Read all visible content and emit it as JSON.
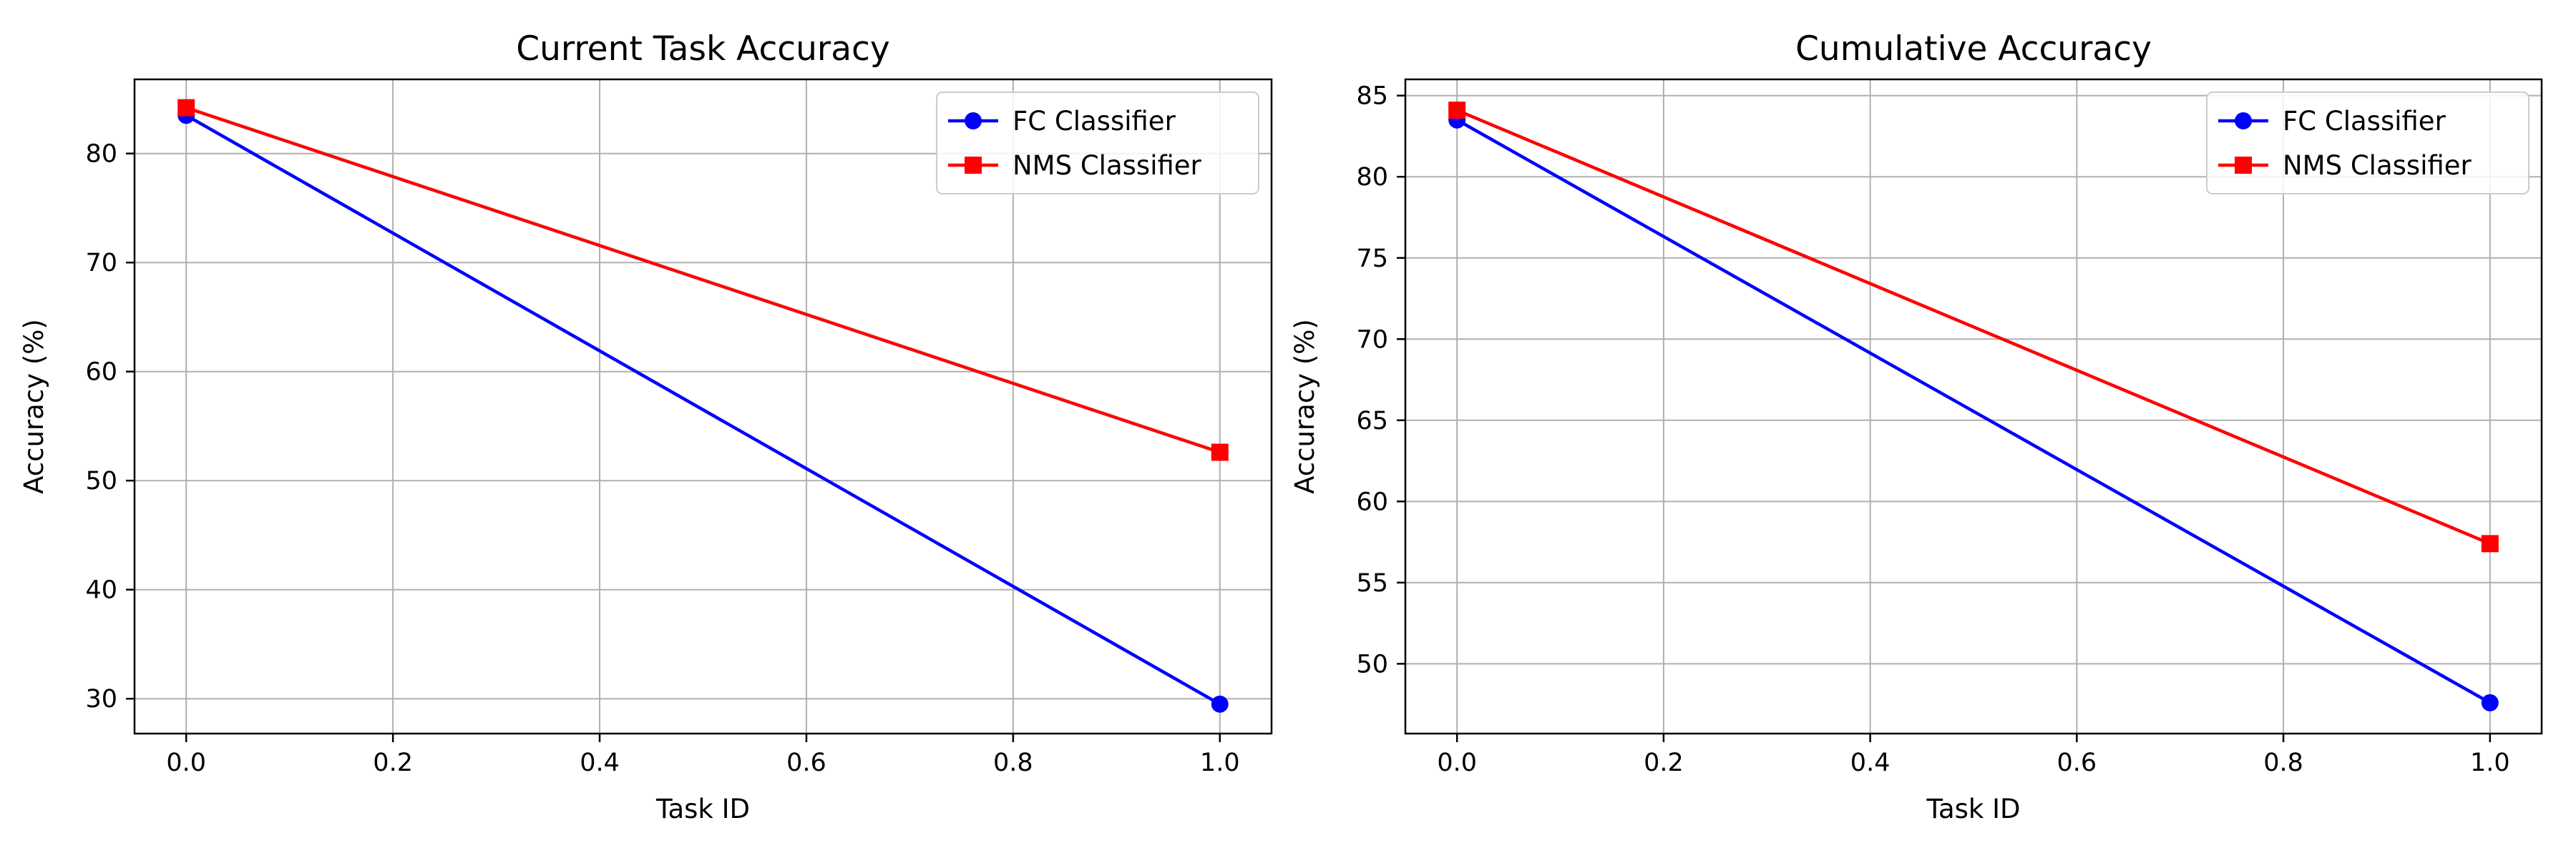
{
  "chart_data": [
    {
      "type": "line",
      "title": "Current Task Accuracy",
      "xlabel": "Task ID",
      "ylabel": "Accuracy (%)",
      "x": [
        0.0,
        1.0
      ],
      "xlim": [
        -0.05,
        1.05
      ],
      "ylim": [
        26.8,
        86.8
      ],
      "xticks": [
        0.0,
        0.2,
        0.4,
        0.6,
        0.8,
        1.0
      ],
      "xtick_labels": [
        "0.0",
        "0.2",
        "0.4",
        "0.6",
        "0.8",
        "1.0"
      ],
      "yticks": [
        30,
        40,
        50,
        60,
        70,
        80
      ],
      "ytick_labels": [
        "30",
        "40",
        "50",
        "60",
        "70",
        "80"
      ],
      "grid": true,
      "legend_position": "top-right",
      "series": [
        {
          "name": "FC Classifier",
          "values": [
            83.5,
            29.5
          ],
          "color": "#0000ff",
          "marker": "circle"
        },
        {
          "name": "NMS Classifier",
          "values": [
            84.2,
            52.6
          ],
          "color": "#ff0000",
          "marker": "square"
        }
      ]
    },
    {
      "type": "line",
      "title": "Cumulative Accuracy",
      "xlabel": "Task ID",
      "ylabel": "Accuracy (%)",
      "x": [
        0.0,
        1.0
      ],
      "xlim": [
        -0.05,
        1.05
      ],
      "ylim": [
        45.7,
        86.0
      ],
      "xticks": [
        0.0,
        0.2,
        0.4,
        0.6,
        0.8,
        1.0
      ],
      "xtick_labels": [
        "0.0",
        "0.2",
        "0.4",
        "0.6",
        "0.8",
        "1.0"
      ],
      "yticks": [
        50,
        55,
        60,
        65,
        70,
        75,
        80,
        85
      ],
      "ytick_labels": [
        "50",
        "55",
        "60",
        "65",
        "70",
        "75",
        "80",
        "85"
      ],
      "grid": true,
      "legend_position": "top-right",
      "series": [
        {
          "name": "FC Classifier",
          "values": [
            83.5,
            47.6
          ],
          "color": "#0000ff",
          "marker": "circle"
        },
        {
          "name": "NMS Classifier",
          "values": [
            84.1,
            57.4
          ],
          "color": "#ff0000",
          "marker": "square"
        }
      ]
    }
  ]
}
